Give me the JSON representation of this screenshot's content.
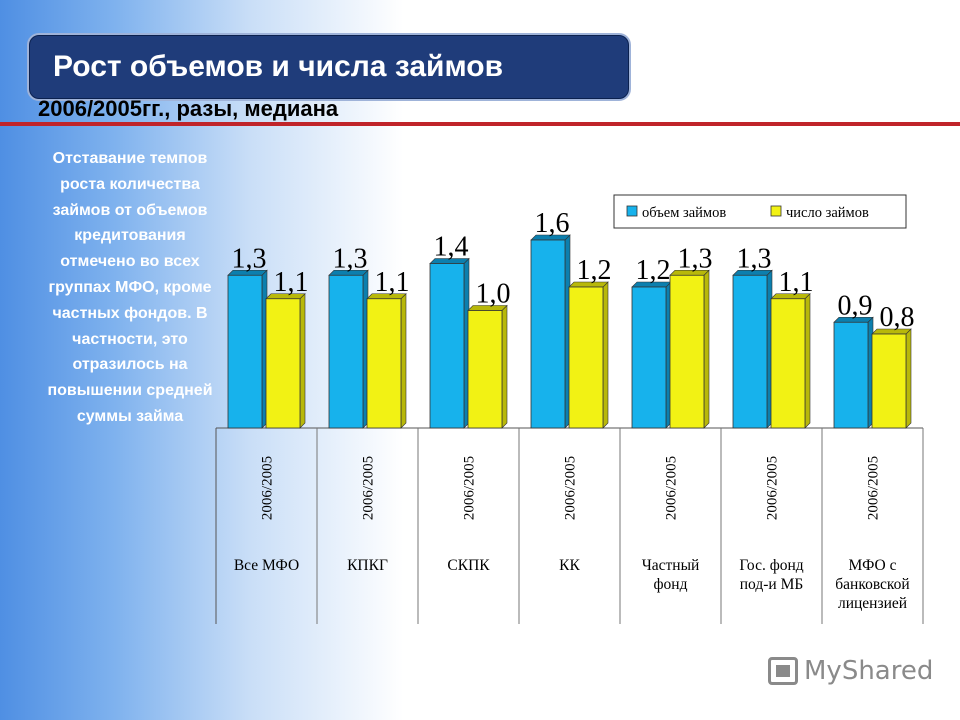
{
  "slide": {
    "title": "Рост объемов и числа займов",
    "subtitle": "2006/2005гг., разы, медиана",
    "side_text": "Отставание темпов роста количества займов от объемов кредитования отмечено во всех группах МФО, кроме частных фондов. В частности, это отразилось на повышении средней суммы займа",
    "watermark": "MyShared",
    "watermark_icon": "myshared-logo-icon"
  },
  "colors": {
    "series1": "#17b2ec",
    "series2": "#f2f214",
    "title_bg": "#1f3c7a",
    "accent_line": "#c0242a"
  },
  "chart_data": {
    "type": "bar",
    "categories": [
      "Все МФО",
      "КПКГ",
      "СКПК",
      "КК",
      "Частный фонд",
      "Гос. фонд под-и МБ",
      "МФО с банковской лицензией"
    ],
    "category_lines": [
      [
        "Все МФО"
      ],
      [
        "КПКГ"
      ],
      [
        "СКПК"
      ],
      [
        "КК"
      ],
      [
        "Частный",
        "фонд"
      ],
      [
        "Гос. фонд",
        "под-и МБ"
      ],
      [
        "МФО с",
        "банковской",
        "лицензией"
      ]
    ],
    "period_label": "2006/2005",
    "series": [
      {
        "name": "объем займов",
        "values": [
          1.3,
          1.3,
          1.4,
          1.6,
          1.2,
          1.3,
          0.9
        ],
        "labels": [
          "1,3",
          "1,3",
          "1,4",
          "1,6",
          "1,2",
          "1,3",
          "0,9"
        ]
      },
      {
        "name": "число займов",
        "values": [
          1.1,
          1.1,
          1.0,
          1.2,
          1.3,
          1.1,
          0.8
        ],
        "labels": [
          "1,1",
          "1,1",
          "1,0",
          "1,2",
          "1,3",
          "1,1",
          "0,8"
        ]
      }
    ],
    "ylim": [
      0,
      1.6
    ],
    "grid": false,
    "legend": "top-right"
  }
}
